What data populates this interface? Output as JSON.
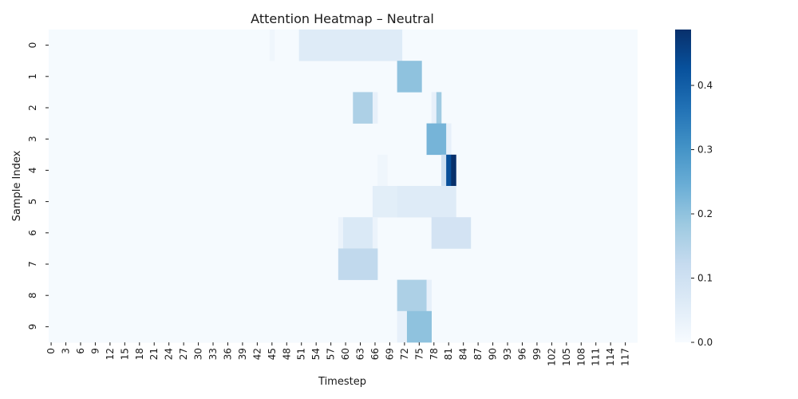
{
  "chart_data": {
    "type": "heatmap",
    "title": "Attention Heatmap – Neutral",
    "xlabel": "Timestep",
    "ylabel": "Sample Index",
    "n_cols": 120,
    "rows": [
      "0",
      "1",
      "2",
      "3",
      "4",
      "5",
      "6",
      "7",
      "8",
      "9"
    ],
    "x_tick_labels": [
      "0",
      "3",
      "6",
      "9",
      "12",
      "15",
      "18",
      "21",
      "24",
      "27",
      "30",
      "33",
      "36",
      "39",
      "42",
      "45",
      "48",
      "51",
      "54",
      "57",
      "60",
      "63",
      "66",
      "69",
      "72",
      "75",
      "78",
      "81",
      "84",
      "87",
      "90",
      "93",
      "96",
      "99",
      "102",
      "105",
      "108",
      "111",
      "114",
      "117"
    ],
    "vmin": 0.0,
    "vmax": 0.487,
    "colorbar_ticks": [
      "0.0",
      "0.1",
      "0.2",
      "0.3",
      "0.4"
    ],
    "colormap": [
      "#f7fbff",
      "#deebf7",
      "#c6dbef",
      "#9ecae1",
      "#6baed6",
      "#4292c6",
      "#2171b5",
      "#08519c",
      "#08306b"
    ],
    "background_value": 0.005,
    "cells": [
      {
        "row": 0,
        "from": 45,
        "to": 45,
        "value": 0.02
      },
      {
        "row": 0,
        "from": 51,
        "to": 71,
        "value": 0.06
      },
      {
        "row": 1,
        "from": 71,
        "to": 75,
        "value": 0.2
      },
      {
        "row": 2,
        "from": 62,
        "to": 65,
        "value": 0.16
      },
      {
        "row": 2,
        "from": 66,
        "to": 66,
        "value": 0.04
      },
      {
        "row": 2,
        "from": 78,
        "to": 78,
        "value": 0.04
      },
      {
        "row": 2,
        "from": 79,
        "to": 79,
        "value": 0.18
      },
      {
        "row": 3,
        "from": 77,
        "to": 80,
        "value": 0.23
      },
      {
        "row": 3,
        "from": 81,
        "to": 81,
        "value": 0.04
      },
      {
        "row": 4,
        "from": 67,
        "to": 68,
        "value": 0.02
      },
      {
        "row": 4,
        "from": 80,
        "to": 80,
        "value": 0.1
      },
      {
        "row": 4,
        "from": 81,
        "to": 81,
        "value": 0.43
      },
      {
        "row": 4,
        "from": 82,
        "to": 82,
        "value": 0.487
      },
      {
        "row": 5,
        "from": 66,
        "to": 70,
        "value": 0.05
      },
      {
        "row": 5,
        "from": 71,
        "to": 82,
        "value": 0.06
      },
      {
        "row": 6,
        "from": 59,
        "to": 59,
        "value": 0.03
      },
      {
        "row": 6,
        "from": 60,
        "to": 65,
        "value": 0.07
      },
      {
        "row": 6,
        "from": 66,
        "to": 66,
        "value": 0.03
      },
      {
        "row": 6,
        "from": 78,
        "to": 85,
        "value": 0.09
      },
      {
        "row": 7,
        "from": 59,
        "to": 66,
        "value": 0.13
      },
      {
        "row": 8,
        "from": 71,
        "to": 76,
        "value": 0.16
      },
      {
        "row": 8,
        "from": 77,
        "to": 77,
        "value": 0.04
      },
      {
        "row": 9,
        "from": 71,
        "to": 72,
        "value": 0.04
      },
      {
        "row": 9,
        "from": 73,
        "to": 77,
        "value": 0.2
      }
    ]
  }
}
